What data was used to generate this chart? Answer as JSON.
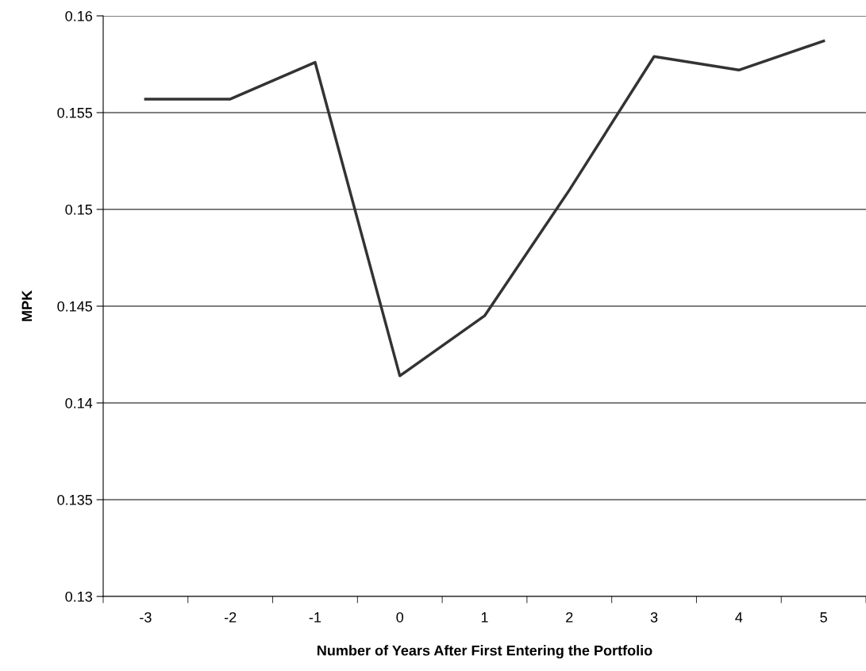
{
  "chart_data": {
    "type": "line",
    "xlabel": "Number of Years After First Entering the Portfolio",
    "ylabel": "MPK",
    "categories": [
      "-3",
      "-2",
      "-1",
      "0",
      "1",
      "2",
      "3",
      "4",
      "5"
    ],
    "series": [
      {
        "color": "#333333",
        "values": [
          0.1557,
          0.1557,
          0.1576,
          0.1414,
          0.1445,
          0.151,
          0.1579,
          0.1572,
          0.1587
        ]
      }
    ],
    "ylim": [
      0.13,
      0.16
    ],
    "yticks": [
      0.13,
      0.135,
      0.14,
      0.145,
      0.15,
      0.155,
      0.16
    ],
    "grid": "y",
    "marker": "none",
    "line_style": "solid"
  }
}
